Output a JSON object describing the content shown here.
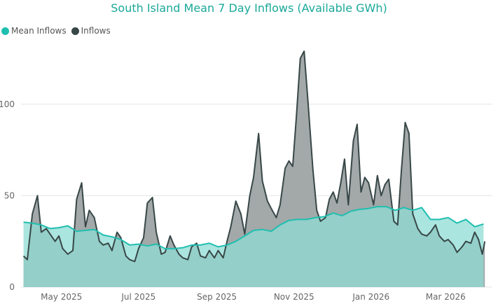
{
  "chart_data": {
    "type": "area",
    "title": "South Island Mean 7 Day Inflows (Available GWh)",
    "xlabel": "",
    "ylabel": "",
    "xlim": [
      "2025-03-30",
      "2026-04-07"
    ],
    "ylim": [
      0,
      134
    ],
    "grid": true,
    "legend_position": "top-left",
    "x_ticks": [
      {
        "date": "2025-05-01",
        "label": "May 2025"
      },
      {
        "date": "2025-07-01",
        "label": "Jul 2025"
      },
      {
        "date": "2025-09-01",
        "label": "Sep 2025"
      },
      {
        "date": "2025-11-01",
        "label": "Nov 2025"
      },
      {
        "date": "2026-01-01",
        "label": "Jan 2026"
      },
      {
        "date": "2026-03-01",
        "label": "Mar 2026"
      }
    ],
    "y_ticks": [
      0,
      50,
      100
    ],
    "series": [
      {
        "name": "Mean Inflows",
        "color": "#1fbfb0",
        "fill": "#8fdcd4",
        "points": [
          [
            "2025-04-01",
            35.5
          ],
          [
            "2025-04-08",
            35
          ],
          [
            "2025-04-15",
            34
          ],
          [
            "2025-04-22",
            32
          ],
          [
            "2025-04-29",
            32.5
          ],
          [
            "2025-05-06",
            33.5
          ],
          [
            "2025-05-13",
            30.5
          ],
          [
            "2025-05-20",
            31
          ],
          [
            "2025-05-27",
            31.5
          ],
          [
            "2025-06-03",
            28.5
          ],
          [
            "2025-06-10",
            27.5
          ],
          [
            "2025-06-17",
            26
          ],
          [
            "2025-06-24",
            23
          ],
          [
            "2025-07-01",
            23.5
          ],
          [
            "2025-07-08",
            22.5
          ],
          [
            "2025-07-15",
            23.5
          ],
          [
            "2025-07-22",
            21
          ],
          [
            "2025-07-29",
            21
          ],
          [
            "2025-08-05",
            21.5
          ],
          [
            "2025-08-12",
            23
          ],
          [
            "2025-08-19",
            23
          ],
          [
            "2025-08-26",
            24
          ],
          [
            "2025-09-02",
            22
          ],
          [
            "2025-09-09",
            23
          ],
          [
            "2025-09-16",
            25
          ],
          [
            "2025-09-23",
            28
          ],
          [
            "2025-09-30",
            31
          ],
          [
            "2025-10-07",
            31.5
          ],
          [
            "2025-10-14",
            30.5
          ],
          [
            "2025-10-21",
            34
          ],
          [
            "2025-10-28",
            36.5
          ],
          [
            "2025-11-04",
            37
          ],
          [
            "2025-11-11",
            37
          ],
          [
            "2025-11-18",
            38
          ],
          [
            "2025-11-25",
            38.5
          ],
          [
            "2025-12-02",
            40.5
          ],
          [
            "2025-12-09",
            39
          ],
          [
            "2025-12-16",
            41.5
          ],
          [
            "2025-12-23",
            42.5
          ],
          [
            "2025-12-30",
            43
          ],
          [
            "2026-01-06",
            44
          ],
          [
            "2026-01-13",
            44
          ],
          [
            "2026-01-20",
            42
          ],
          [
            "2026-01-27",
            43.5
          ],
          [
            "2026-02-03",
            42
          ],
          [
            "2026-02-10",
            43.5
          ],
          [
            "2026-02-17",
            37
          ],
          [
            "2026-02-24",
            37
          ],
          [
            "2026-03-03",
            38
          ],
          [
            "2026-03-10",
            35
          ],
          [
            "2026-03-17",
            37
          ],
          [
            "2026-03-24",
            33
          ],
          [
            "2026-03-31",
            34.5
          ]
        ]
      },
      {
        "name": "Inflows",
        "color": "#384747",
        "fill": "#9ea3a3",
        "points": [
          [
            "2025-04-01",
            17
          ],
          [
            "2025-04-04",
            15
          ],
          [
            "2025-04-08",
            40
          ],
          [
            "2025-04-12",
            50
          ],
          [
            "2025-04-15",
            30
          ],
          [
            "2025-04-19",
            32
          ],
          [
            "2025-04-22",
            29
          ],
          [
            "2025-04-26",
            25
          ],
          [
            "2025-04-29",
            28
          ],
          [
            "2025-05-02",
            21
          ],
          [
            "2025-05-06",
            18
          ],
          [
            "2025-05-10",
            20
          ],
          [
            "2025-05-13",
            48
          ],
          [
            "2025-05-17",
            57
          ],
          [
            "2025-05-20",
            33
          ],
          [
            "2025-05-23",
            42
          ],
          [
            "2025-05-27",
            38
          ],
          [
            "2025-05-31",
            25
          ],
          [
            "2025-06-03",
            23
          ],
          [
            "2025-06-07",
            24
          ],
          [
            "2025-06-10",
            20
          ],
          [
            "2025-06-14",
            30
          ],
          [
            "2025-06-17",
            27
          ],
          [
            "2025-06-21",
            17
          ],
          [
            "2025-06-24",
            15
          ],
          [
            "2025-06-28",
            14
          ],
          [
            "2025-07-01",
            21
          ],
          [
            "2025-07-05",
            27
          ],
          [
            "2025-07-08",
            46
          ],
          [
            "2025-07-12",
            49
          ],
          [
            "2025-07-15",
            30
          ],
          [
            "2025-07-19",
            18
          ],
          [
            "2025-07-22",
            19
          ],
          [
            "2025-07-26",
            28
          ],
          [
            "2025-07-29",
            23
          ],
          [
            "2025-08-02",
            18
          ],
          [
            "2025-08-05",
            16
          ],
          [
            "2025-08-09",
            15
          ],
          [
            "2025-08-12",
            22
          ],
          [
            "2025-08-16",
            24
          ],
          [
            "2025-08-19",
            17
          ],
          [
            "2025-08-23",
            16
          ],
          [
            "2025-08-26",
            20
          ],
          [
            "2025-08-30",
            16
          ],
          [
            "2025-09-02",
            20
          ],
          [
            "2025-09-06",
            16
          ],
          [
            "2025-09-09",
            25
          ],
          [
            "2025-09-12",
            33
          ],
          [
            "2025-09-16",
            47
          ],
          [
            "2025-09-20",
            40
          ],
          [
            "2025-09-23",
            29
          ],
          [
            "2025-09-27",
            50
          ],
          [
            "2025-09-30",
            60
          ],
          [
            "2025-10-04",
            84
          ],
          [
            "2025-10-07",
            58
          ],
          [
            "2025-10-11",
            47
          ],
          [
            "2025-10-14",
            43
          ],
          [
            "2025-10-18",
            38
          ],
          [
            "2025-10-21",
            45
          ],
          [
            "2025-10-25",
            65
          ],
          [
            "2025-10-28",
            69
          ],
          [
            "2025-10-31",
            66
          ],
          [
            "2025-11-03",
            94
          ],
          [
            "2025-11-06",
            125
          ],
          [
            "2025-11-09",
            129
          ],
          [
            "2025-11-12",
            102
          ],
          [
            "2025-11-16",
            64
          ],
          [
            "2025-11-19",
            42
          ],
          [
            "2025-11-22",
            36
          ],
          [
            "2025-11-26",
            38
          ],
          [
            "2025-11-29",
            48
          ],
          [
            "2025-12-02",
            52
          ],
          [
            "2025-12-05",
            46
          ],
          [
            "2025-12-08",
            57
          ],
          [
            "2025-12-11",
            70
          ],
          [
            "2025-12-14",
            45
          ],
          [
            "2025-12-18",
            80
          ],
          [
            "2025-12-21",
            89
          ],
          [
            "2025-12-24",
            52
          ],
          [
            "2025-12-27",
            60
          ],
          [
            "2025-12-30",
            57
          ],
          [
            "2026-01-03",
            45
          ],
          [
            "2026-01-06",
            61
          ],
          [
            "2026-01-09",
            50
          ],
          [
            "2026-01-12",
            56
          ],
          [
            "2026-01-15",
            59
          ],
          [
            "2026-01-19",
            36
          ],
          [
            "2026-01-22",
            34
          ],
          [
            "2026-01-25",
            64
          ],
          [
            "2026-01-28",
            90
          ],
          [
            "2026-01-31",
            84
          ],
          [
            "2026-02-03",
            40
          ],
          [
            "2026-02-07",
            32
          ],
          [
            "2026-02-10",
            29
          ],
          [
            "2026-02-14",
            28
          ],
          [
            "2026-02-17",
            30
          ],
          [
            "2026-02-21",
            34
          ],
          [
            "2026-02-24",
            28
          ],
          [
            "2026-02-28",
            25
          ],
          [
            "2026-03-03",
            26
          ],
          [
            "2026-03-07",
            23
          ],
          [
            "2026-03-10",
            19
          ],
          [
            "2026-03-14",
            22
          ],
          [
            "2026-03-17",
            25
          ],
          [
            "2026-03-21",
            24
          ],
          [
            "2026-03-24",
            30
          ],
          [
            "2026-03-27",
            26
          ],
          [
            "2026-03-30",
            18
          ],
          [
            "2026-04-01",
            25
          ]
        ]
      }
    ]
  }
}
